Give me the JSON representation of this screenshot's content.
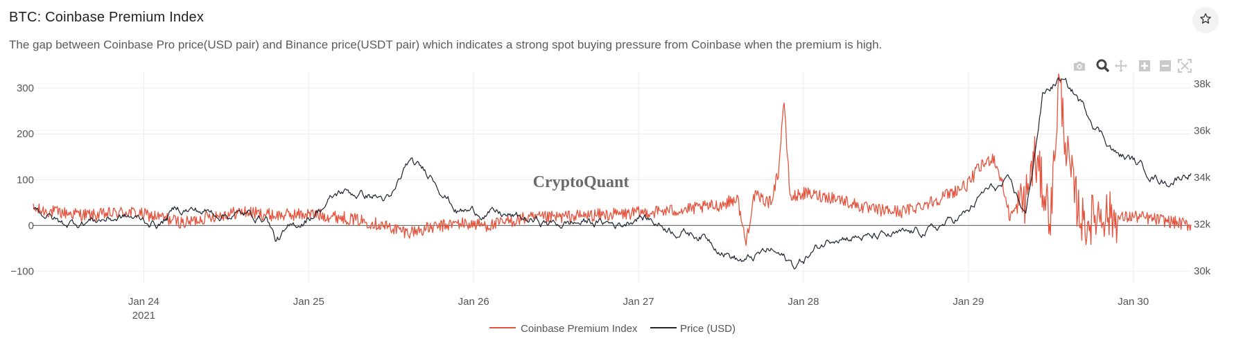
{
  "header": {
    "title": "BTC: Coinbase Premium Index",
    "description": "The gap between Coinbase Pro price(USD pair) and Binance price(USDT pair) which indicates a strong spot buying pressure from Coinbase when the premium is high.",
    "favorite_icon": "star-icon"
  },
  "toolbar": {
    "icons": [
      "camera-icon",
      "zoom-icon",
      "pan-icon",
      "zoom-in-icon",
      "zoom-out-icon",
      "autoscale-icon"
    ]
  },
  "watermark": "CryptoQuant",
  "colors": {
    "premium": "#e5533d",
    "price": "#1d2330",
    "grid": "#ececec",
    "zero_line": "#555555"
  },
  "chart_data": {
    "type": "line",
    "title": "BTC: Coinbase Premium Index",
    "x_range": [
      23.33,
      30.35
    ],
    "x_ticks": [
      {
        "value": 24,
        "label": "Jan 24",
        "sub": "2021"
      },
      {
        "value": 25,
        "label": "Jan 25",
        "sub": ""
      },
      {
        "value": 26,
        "label": "Jan 26",
        "sub": ""
      },
      {
        "value": 27,
        "label": "Jan 27",
        "sub": ""
      },
      {
        "value": 28,
        "label": "Jan 28",
        "sub": ""
      },
      {
        "value": 29,
        "label": "Jan 29",
        "sub": ""
      },
      {
        "value": 30,
        "label": "Jan 30",
        "sub": ""
      }
    ],
    "y_left": {
      "range": [
        -125,
        335
      ],
      "ticks": [
        {
          "value": 300,
          "label": "300"
        },
        {
          "value": 200,
          "label": "200"
        },
        {
          "value": 100,
          "label": "100"
        },
        {
          "value": 0,
          "label": "0"
        },
        {
          "value": -100,
          "label": "−100"
        }
      ]
    },
    "y_right": {
      "range": [
        29500,
        38500
      ],
      "ticks": [
        {
          "value": 38000,
          "label": "38k"
        },
        {
          "value": 36000,
          "label": "36k"
        },
        {
          "value": 34000,
          "label": "34k"
        },
        {
          "value": 32000,
          "label": "32k"
        },
        {
          "value": 30000,
          "label": "30k"
        }
      ]
    },
    "series": [
      {
        "name": "Coinbase Premium Index",
        "axis": "left",
        "color": "#e5533d",
        "x": [
          23.33,
          23.5,
          23.7,
          23.9,
          24.1,
          24.25,
          24.4,
          24.6,
          24.8,
          25.0,
          25.2,
          25.4,
          25.6,
          25.75,
          25.9,
          26.1,
          26.3,
          26.5,
          26.7,
          26.9,
          27.1,
          27.3,
          27.5,
          27.6,
          27.65,
          27.7,
          27.8,
          27.85,
          27.88,
          27.92,
          28.0,
          28.2,
          28.4,
          28.6,
          28.8,
          29.0,
          29.05,
          29.15,
          29.2,
          29.25,
          29.35,
          29.4,
          29.5,
          29.55,
          29.6,
          29.65,
          29.7,
          29.8,
          29.9,
          30.0,
          30.1,
          30.2,
          30.35
        ],
        "y": [
          35,
          28,
          22,
          30,
          18,
          5,
          20,
          30,
          22,
          25,
          18,
          5,
          -15,
          -5,
          5,
          0,
          15,
          18,
          22,
          25,
          30,
          35,
          45,
          60,
          -40,
          65,
          50,
          120,
          275,
          60,
          70,
          60,
          35,
          30,
          55,
          90,
          120,
          150,
          100,
          20,
          60,
          150,
          20,
          320,
          150,
          60,
          0,
          30,
          15,
          20,
          15,
          10,
          0
        ]
      },
      {
        "name": "Price (USD)",
        "axis": "right",
        "color": "#1d2330",
        "x": [
          23.33,
          23.5,
          23.7,
          23.9,
          24.1,
          24.2,
          24.4,
          24.6,
          24.75,
          24.8,
          25.0,
          25.2,
          25.4,
          25.5,
          25.6,
          25.75,
          25.9,
          26.1,
          26.3,
          26.5,
          26.7,
          26.9,
          27.0,
          27.2,
          27.4,
          27.5,
          27.6,
          27.65,
          27.8,
          27.95,
          28.0,
          28.2,
          28.4,
          28.6,
          28.8,
          29.0,
          29.1,
          29.25,
          29.35,
          29.45,
          29.55,
          29.65,
          29.75,
          29.9,
          30.0,
          30.1,
          30.2,
          30.35
        ],
        "y": [
          32800,
          32000,
          32200,
          32300,
          32000,
          32700,
          32500,
          32400,
          32300,
          31300,
          32300,
          33400,
          33200,
          33000,
          34600,
          34100,
          32600,
          32500,
          32200,
          32000,
          32100,
          32000,
          32400,
          31800,
          31500,
          31000,
          30500,
          30400,
          30900,
          30200,
          30500,
          31600,
          31400,
          31500,
          31800,
          32500,
          33400,
          33700,
          32400,
          37500,
          38200,
          37500,
          36500,
          35000,
          34700,
          34200,
          33800,
          34300
        ]
      }
    ]
  },
  "legend": {
    "items": [
      {
        "label": "Coinbase Premium Index",
        "color": "#e5533d"
      },
      {
        "label": "Price (USD)",
        "color": "#1d2330"
      }
    ]
  }
}
